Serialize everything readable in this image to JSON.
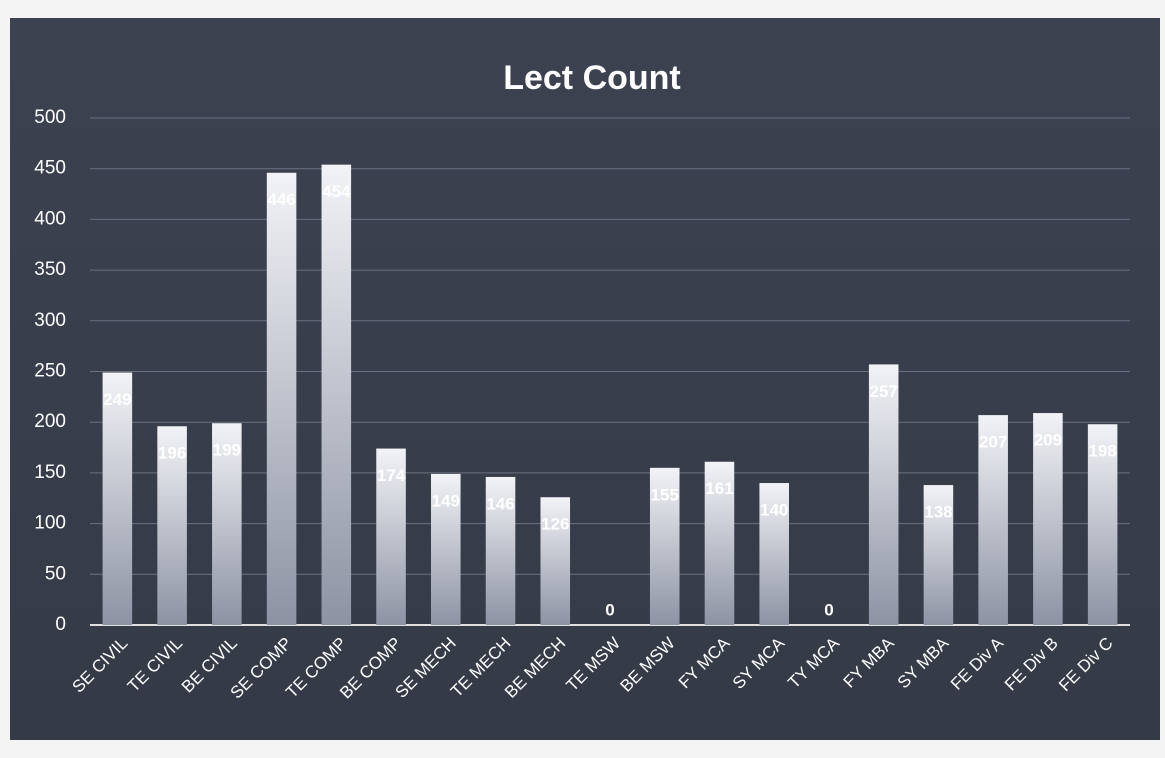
{
  "chart_data": {
    "type": "bar",
    "title": "Lect Count",
    "categories": [
      "SE CIVIL",
      "TE CIVIL",
      "BE CIVIL",
      "SE COMP",
      "TE COMP",
      "BE COMP",
      "SE MECH",
      "TE MECH",
      "BE MECH",
      "TE MSW",
      "BE MSW",
      "FY MCA",
      "SY MCA",
      "TY MCA",
      "FY MBA",
      "SY MBA",
      "FE Div A",
      "FE Div B",
      "FE Div C"
    ],
    "values": [
      249,
      196,
      199,
      446,
      454,
      174,
      149,
      146,
      126,
      0,
      155,
      161,
      140,
      0,
      257,
      138,
      207,
      209,
      198
    ],
    "color": "#d9dbe3",
    "ylim": [
      0,
      500
    ],
    "yticks": [
      0,
      50,
      100,
      150,
      200,
      250,
      300,
      350,
      400,
      450,
      500
    ],
    "grid": true
  }
}
